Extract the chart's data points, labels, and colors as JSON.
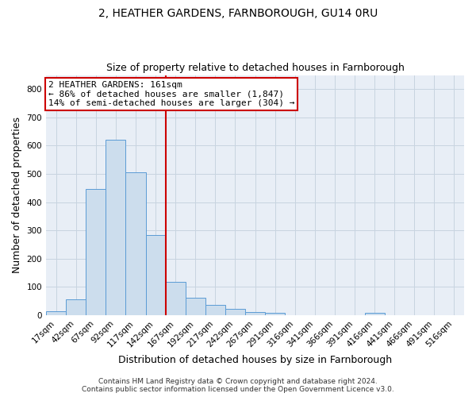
{
  "title": "2, HEATHER GARDENS, FARNBOROUGH, GU14 0RU",
  "subtitle": "Size of property relative to detached houses in Farnborough",
  "xlabel": "Distribution of detached houses by size in Farnborough",
  "ylabel": "Number of detached properties",
  "bar_labels": [
    "17sqm",
    "42sqm",
    "67sqm",
    "92sqm",
    "117sqm",
    "142sqm",
    "167sqm",
    "192sqm",
    "217sqm",
    "242sqm",
    "267sqm",
    "291sqm",
    "316sqm",
    "341sqm",
    "366sqm",
    "391sqm",
    "416sqm",
    "441sqm",
    "466sqm",
    "491sqm",
    "516sqm"
  ],
  "bar_values": [
    13,
    55,
    447,
    622,
    505,
    283,
    117,
    63,
    37,
    22,
    10,
    7,
    0,
    0,
    0,
    0,
    8,
    0,
    0,
    0,
    0
  ],
  "bar_color": "#ccdded",
  "bar_edge_color": "#5b9bd5",
  "vline_x": 6,
  "vline_color": "#cc0000",
  "annotation_text": "2 HEATHER GARDENS: 161sqm\n← 86% of detached houses are smaller (1,847)\n14% of semi-detached houses are larger (304) →",
  "annotation_box_color": "#ffffff",
  "annotation_box_edge_color": "#cc0000",
  "ylim": [
    0,
    850
  ],
  "yticks": [
    0,
    100,
    200,
    300,
    400,
    500,
    600,
    700,
    800
  ],
  "grid_color": "#c8d4e0",
  "background_color": "#e8eef6",
  "footer_line1": "Contains HM Land Registry data © Crown copyright and database right 2024.",
  "footer_line2": "Contains public sector information licensed under the Open Government Licence v3.0.",
  "title_fontsize": 10,
  "subtitle_fontsize": 9,
  "axis_label_fontsize": 9,
  "tick_fontsize": 7.5,
  "annotation_fontsize": 8,
  "footer_fontsize": 6.5
}
